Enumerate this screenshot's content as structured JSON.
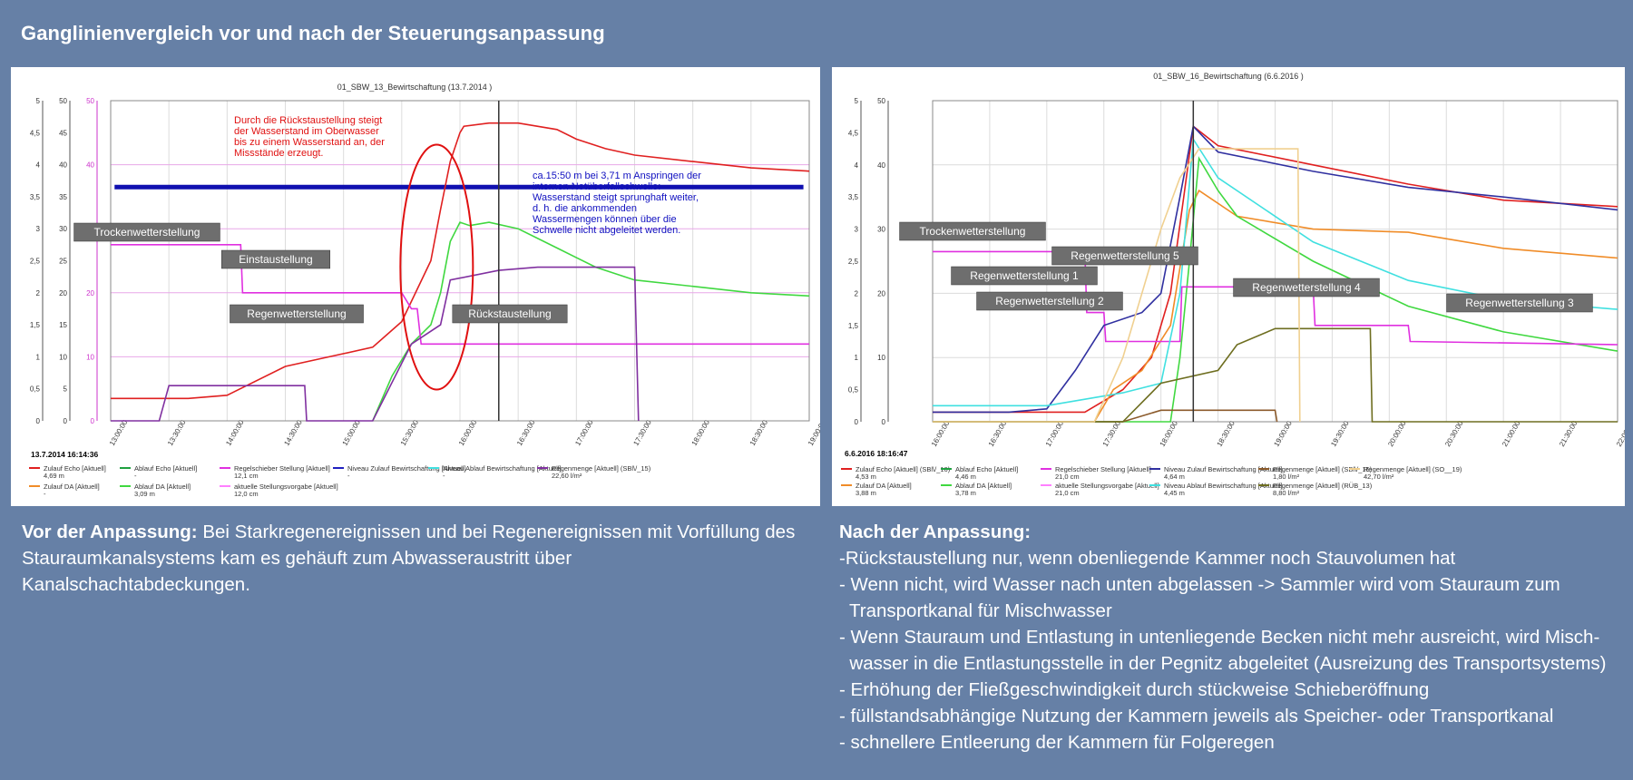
{
  "page": {
    "title": "Ganglinienvergleich vor und nach der Steuerungsanpassung",
    "colors": {
      "background": "#6680a6",
      "panel": "#ffffff",
      "text": "#ffffff"
    }
  },
  "left_text": {
    "heading": "Vor der Anpassung:",
    "body": "Bei Starkregenereignissen und bei Regenereignissen mit Vorfüllung des Stauraumkanalsystems kam es gehäuft zum Abwasseraustritt über Kanalschachtabdeckungen."
  },
  "right_text": {
    "heading": "Nach der Anpassung:",
    "lines": [
      "-Rückstaustellung nur, wenn obenliegende Kammer noch Stauvolumen hat",
      "- Wenn nicht, wird Wasser nach unten abgelassen -> Sammler wird vom Stauraum zum",
      "  Transportkanal für Mischwasser",
      "- Wenn Stauraum und Entlastung in untenliegende Becken nicht mehr ausreicht, wird Misch-",
      "  wasser in die Entlastungsstelle in der Pegnitz abgeleitet (Ausreizung des Transportsystems)",
      "- Erhöhung der Fließgeschwindigkeit durch stückweise Schieberöffnung",
      "- füllstandsabhängige Nutzung der Kammern jeweils als Speicher- oder Transportkanal",
      "- schnellere Entleerung der Kammern für Folgeregen"
    ]
  },
  "chart_data": [
    {
      "type": "line",
      "title": "01_SBW_13_Bewirtschaftung (13.7.2014 )",
      "timestamp": "13.7.2014 16:14:36",
      "x": [
        "13:00:00",
        "13:30:00",
        "14:00:00",
        "14:30:00",
        "15:00:00",
        "15:30:00",
        "16:00:00",
        "16:30:00",
        "17:00:00",
        "17:30:00",
        "18:00:00",
        "18:30:00",
        "19:00:00"
      ],
      "y_axes": [
        {
          "ticks": [
            "0",
            "0,5",
            "1",
            "1,5",
            "2",
            "2,5",
            "3",
            "3,5",
            "4",
            "4,5",
            "5"
          ]
        },
        {
          "ticks": [
            "0",
            "5",
            "10",
            "15",
            "20",
            "25",
            "30",
            "35",
            "40",
            "45",
            "50"
          ]
        },
        {
          "ticks": [
            "0",
            "10",
            "20",
            "30",
            "40",
            "50"
          ],
          "color": "#cc33cc"
        }
      ],
      "ylim": [
        0,
        50
      ],
      "xlim_minutes": [
        0,
        360
      ],
      "cursor_minutes": 200,
      "threshold_level": 36.5,
      "series": [
        {
          "name": "Zulauf Echo [Aktuell]",
          "value_label": "4,69 m",
          "color": "#e02020",
          "x": [
            0,
            40,
            60,
            90,
            120,
            135,
            150,
            165,
            170,
            175,
            180,
            182,
            195,
            210,
            230,
            240,
            255,
            270,
            300,
            330,
            360
          ],
          "y": [
            3.5,
            3.5,
            4,
            8.5,
            10.5,
            11.5,
            15.5,
            25,
            33,
            40.5,
            45,
            46,
            46.5,
            46.5,
            45.5,
            44,
            42.5,
            41.5,
            40.5,
            39.5,
            39
          ]
        },
        {
          "name": "Zulauf DA [Aktuell]",
          "value_label": "-",
          "color": "#f08c28",
          "x": [],
          "y": []
        },
        {
          "name": "Ablauf Echo [Aktuell]",
          "value_label": "-",
          "color": "#20a040",
          "x": [],
          "y": []
        },
        {
          "name": "Ablauf DA [Aktuell]",
          "value_label": "3,09 m",
          "color": "#40d840",
          "x": [
            135,
            145,
            155,
            165,
            170,
            175,
            180,
            185,
            195,
            210,
            230,
            250,
            270,
            300,
            330,
            360
          ],
          "y": [
            0,
            7,
            12,
            15,
            20,
            28,
            31,
            30.5,
            31,
            30,
            27,
            24,
            22,
            21,
            20,
            19.5
          ]
        },
        {
          "name": "Regelschieber Stellung [Aktuell]",
          "value_label": "12,1 cm",
          "color": "#e030e0",
          "x": [
            0,
            67,
            68,
            150,
            155,
            158,
            160,
            175,
            200,
            250,
            300,
            330,
            360
          ],
          "y": [
            27.5,
            27.5,
            20,
            20,
            17.5,
            17.5,
            12,
            12,
            12,
            12,
            12,
            12,
            12
          ]
        },
        {
          "name": "aktuelle Stellungsvorgabe [Aktuell]",
          "value_label": "12,0 cm",
          "color": "#ff80ff",
          "x": [],
          "y": []
        },
        {
          "name": "Niveau Zulauf Bewirtschaftung [Aktuell]",
          "value_label": "-",
          "color": "#2020c0",
          "x": [],
          "y": []
        },
        {
          "name": "Niveau Ablauf Bewirtschaftung [Aktuell]",
          "value_label": "-",
          "color": "#40e0e0",
          "x": [],
          "y": []
        },
        {
          "name": "Regenmenge [Aktuell] (SBl\\/_15)",
          "value_label": "22,60 l/m²",
          "color": "#8030a0",
          "x": [
            0,
            25,
            30,
            100,
            101,
            135,
            155,
            170,
            175,
            200,
            220,
            270,
            272
          ],
          "y": [
            0,
            0,
            5.5,
            5.5,
            0,
            0,
            12,
            15,
            22,
            23.5,
            24,
            24,
            0
          ]
        }
      ],
      "labels": [
        "Trockenwetterstellung",
        "Einstaustellung",
        "Regenwetterstellung",
        "Rückstaustellung"
      ],
      "annotation_red": [
        "Durch die Rückstaustellung steigt",
        "der Wasserstand im Oberwasser",
        "bis zu einem Wasserstand an, der",
        "Missstände erzeugt."
      ],
      "annotation_blue": [
        "ca.15:50 m bei 3,71 m Anspringen der",
        "internen Notüberfallschwelle:",
        "Wasserstand steigt sprunghaft weiter,",
        "d. h. die ankommenden",
        "Wassermengen können über die",
        "Schwelle nicht abgeleitet werden."
      ]
    },
    {
      "type": "line",
      "title": "01_SBW_16_Bewirtschaftung (6.6.2016 )",
      "timestamp": "6.6.2016 18:16:47",
      "x": [
        "16:00:00",
        "16:30:00",
        "17:00:00",
        "17:30:00",
        "18:00:00",
        "18:30:00",
        "19:00:00",
        "19:30:00",
        "20:00:00",
        "20:30:00",
        "21:00:00",
        "21:30:00",
        "22:00:00"
      ],
      "y_axes": [
        {
          "ticks": [
            "0",
            "0,5",
            "1",
            "1,5",
            "2",
            "2,5",
            "3",
            "3,5",
            "4",
            "4,5",
            "5"
          ]
        },
        {
          "ticks": [
            "0",
            "10",
            "20",
            "30",
            "40",
            "50"
          ]
        }
      ],
      "ylim": [
        0,
        50
      ],
      "xlim_minutes": [
        0,
        360
      ],
      "cursor_minutes": 137,
      "series": [
        {
          "name": "Zulauf Echo [Aktuell] (SBl\\/_16)",
          "value_label": "4,53 m",
          "color": "#e02020",
          "x": [
            0,
            80,
            100,
            115,
            125,
            132,
            137,
            150,
            200,
            250,
            300,
            360
          ],
          "y": [
            1.5,
            1.5,
            5,
            10,
            20,
            35,
            46,
            43,
            40,
            37,
            34.5,
            33.5
          ]
        },
        {
          "name": "Zulauf DA [Aktuell]",
          "value_label": "3,88 m",
          "color": "#f08c28",
          "x": [
            0,
            85,
            95,
            110,
            125,
            135,
            140,
            160,
            200,
            250,
            260,
            300,
            360
          ],
          "y": [
            0,
            0,
            5,
            8,
            15,
            33,
            36,
            32,
            30,
            29.5,
            29,
            27,
            25.5
          ]
        },
        {
          "name": "Ablauf Echo [Aktuell]",
          "value_label": "4,46 m",
          "color": "#20a040",
          "x": [],
          "y": []
        },
        {
          "name": "Ablauf DA [Aktuell]",
          "value_label": "3,78 m",
          "color": "#40d840",
          "x": [
            0,
            125,
            130,
            135,
            140,
            150,
            160,
            200,
            250,
            300,
            360
          ],
          "y": [
            0,
            0,
            10,
            25,
            41,
            36,
            32,
            25,
            18,
            14,
            11
          ]
        },
        {
          "name": "Regelschieber Stellung [Aktuell]",
          "value_label": "21,0 cm",
          "color": "#e030e0",
          "x": [
            0,
            80,
            81,
            90,
            91,
            130,
            131,
            200,
            201,
            250,
            251,
            360
          ],
          "y": [
            26.5,
            26.5,
            17,
            17,
            12.5,
            12.5,
            21,
            21,
            15,
            15,
            12.5,
            12
          ]
        },
        {
          "name": "aktuelle Stellungsvorgabe [Aktuell]",
          "value_label": "21,0 cm",
          "color": "#ff80ff",
          "x": [],
          "y": []
        },
        {
          "name": "Niveau Zulauf Bewirtschaftung [Aktuell]",
          "value_label": "4,64 m",
          "color": "#3030a0",
          "x": [
            0,
            40,
            60,
            75,
            90,
            110,
            120,
            130,
            137,
            150,
            200,
            250,
            300,
            360
          ],
          "y": [
            1.5,
            1.5,
            2,
            8,
            15,
            17,
            20,
            35,
            46,
            42,
            39,
            36.5,
            35,
            33
          ]
        },
        {
          "name": "Niveau Ablauf Bewirtschaftung [Aktuell]",
          "value_label": "4,45 m",
          "color": "#40e0e0",
          "x": [
            0,
            60,
            80,
            100,
            120,
            130,
            137,
            150,
            200,
            250,
            300,
            360
          ],
          "y": [
            2.5,
            2.5,
            3.5,
            4.5,
            6,
            20,
            44,
            38,
            28,
            22,
            19,
            17.5
          ]
        },
        {
          "name": "Regenmenge [Aktuell] (SBl\\/_15)",
          "value_label": "1,80 l/m²",
          "color": "#8b5a2b",
          "x": [
            0,
            100,
            120,
            180,
            181
          ],
          "y": [
            0,
            0,
            1.8,
            1.8,
            0
          ]
        },
        {
          "name": "Regenmenge [Aktuell] (RÜB_13)",
          "value_label": "8,80 l/m²",
          "color": "#6e6e20",
          "x": [
            0,
            100,
            120,
            150,
            160,
            180,
            230,
            231,
            360
          ],
          "y": [
            0,
            0,
            6,
            8,
            12,
            14.5,
            14.5,
            0,
            0
          ]
        },
        {
          "name": "Regenmenge [Aktuell] (SO__19)",
          "value_label": "42,70 l/m²",
          "color": "#f0d090",
          "x": [
            0,
            85,
            100,
            120,
            130,
            140,
            192,
            193
          ],
          "y": [
            0,
            0,
            10,
            30,
            38,
            42.5,
            42.5,
            0
          ]
        }
      ],
      "labels": [
        "Trockenwetterstellung",
        "Regenwetterstellung 1",
        "Regenwetterstellung 2",
        "Regenwetterstellung 5",
        "Regenwetterstellung 4",
        "Regenwetterstellung 3"
      ]
    }
  ]
}
